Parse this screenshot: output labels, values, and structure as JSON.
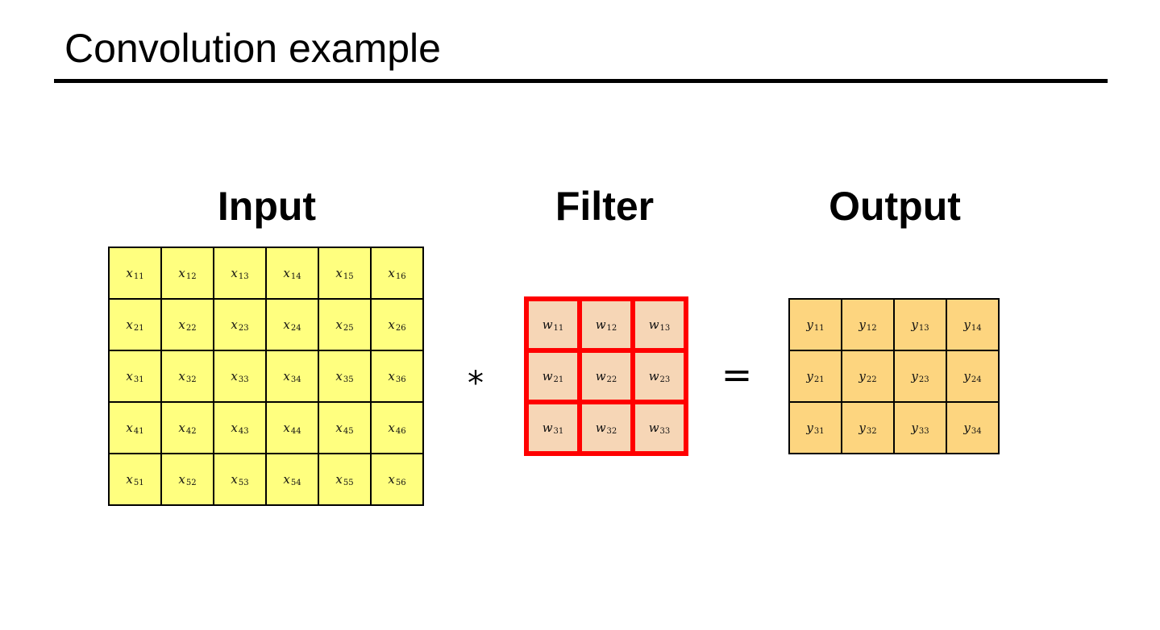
{
  "title": "Convolution example",
  "headings": {
    "input": "Input",
    "filter": "Filter",
    "output": "Output"
  },
  "operators": {
    "convolution": "*",
    "equals": "="
  },
  "colors": {
    "input_fill": "#ffff7f",
    "filter_fill": "#f6d6b6",
    "filter_border": "#ff0000",
    "output_fill": "#fdd57f"
  },
  "input_matrix": [
    [
      "x11",
      "x12",
      "x13",
      "x14",
      "x15",
      "x16"
    ],
    [
      "x21",
      "x22",
      "x23",
      "x24",
      "x25",
      "x26"
    ],
    [
      "x31",
      "x32",
      "x33",
      "x34",
      "x35",
      "x36"
    ],
    [
      "x41",
      "x42",
      "x43",
      "x44",
      "x45",
      "x46"
    ],
    [
      "x51",
      "x52",
      "x53",
      "x54",
      "x55",
      "x56"
    ]
  ],
  "filter_matrix": [
    [
      "w11",
      "w12",
      "w13"
    ],
    [
      "w21",
      "w22",
      "w23"
    ],
    [
      "w31",
      "w32",
      "w33"
    ]
  ],
  "output_matrix": [
    [
      "y11",
      "y12",
      "y13",
      "y14"
    ],
    [
      "y21",
      "y22",
      "y23",
      "y24"
    ],
    [
      "y31",
      "y32",
      "y33",
      "y34"
    ]
  ]
}
